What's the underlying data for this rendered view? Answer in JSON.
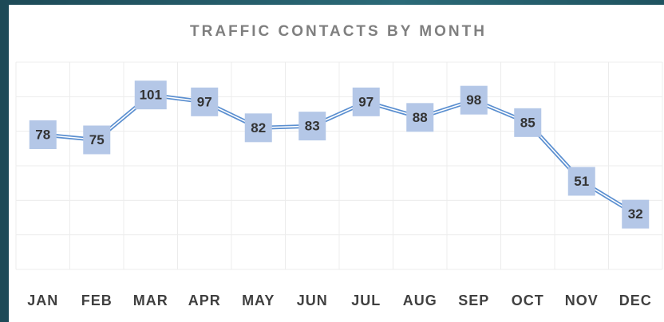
{
  "chart_data": {
    "type": "line",
    "title": "TRAFFIC CONTACTS BY MONTH",
    "categories": [
      "JAN",
      "FEB",
      "MAR",
      "APR",
      "MAY",
      "JUN",
      "JUL",
      "AUG",
      "SEP",
      "OCT",
      "NOV",
      "DEC"
    ],
    "values": [
      78,
      75,
      101,
      97,
      82,
      83,
      97,
      88,
      98,
      85,
      51,
      32
    ],
    "color": "#5b8fd0",
    "label_color": "#b4c7e7",
    "ylim": [
      0,
      120
    ],
    "yticks": [
      0,
      20,
      40,
      60,
      80,
      100,
      120
    ],
    "grid": true
  }
}
